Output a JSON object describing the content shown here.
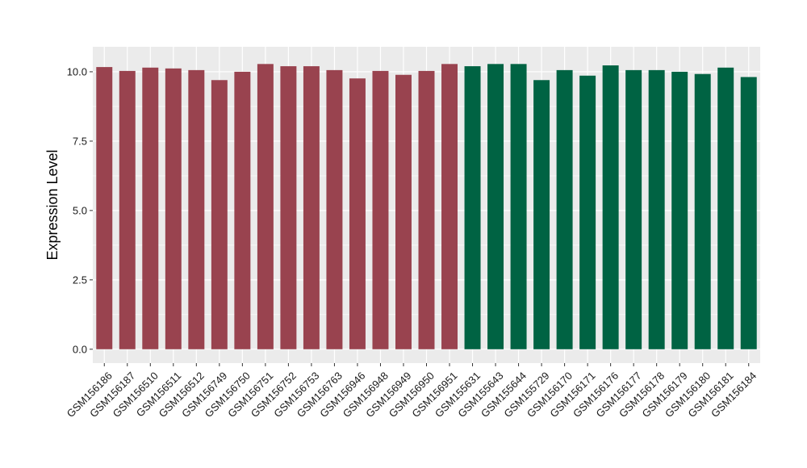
{
  "chart_data": {
    "type": "bar",
    "title": "",
    "xlabel": "",
    "ylabel": "Expression Level",
    "ylim": [
      -0.5,
      10.9
    ],
    "yticks": [
      0.0,
      2.5,
      5.0,
      7.5,
      10.0
    ],
    "ytick_labels": [
      "0.0",
      "2.5",
      "5.0",
      "7.5",
      "10.0"
    ],
    "grid": true,
    "legend": "none",
    "categories": [
      "GSM156186",
      "GSM156187",
      "GSM156510",
      "GSM156511",
      "GSM156512",
      "GSM156749",
      "GSM156750",
      "GSM156751",
      "GSM156752",
      "GSM156753",
      "GSM156763",
      "GSM156946",
      "GSM156948",
      "GSM156949",
      "GSM156950",
      "GSM156951",
      "GSM155631",
      "GSM155643",
      "GSM155644",
      "GSM155729",
      "GSM156170",
      "GSM156171",
      "GSM156176",
      "GSM156177",
      "GSM156178",
      "GSM156179",
      "GSM156180",
      "GSM156181",
      "GSM156184"
    ],
    "values": [
      10.17,
      10.03,
      10.15,
      10.12,
      10.06,
      9.7,
      10.0,
      10.28,
      10.2,
      10.2,
      10.06,
      9.76,
      10.03,
      9.89,
      10.03,
      10.28,
      10.2,
      10.28,
      10.28,
      9.7,
      10.06,
      9.86,
      10.23,
      10.06,
      10.06,
      10.0,
      9.92,
      10.15,
      9.81
    ],
    "groups": [
      "A",
      "A",
      "A",
      "A",
      "A",
      "A",
      "A",
      "A",
      "A",
      "A",
      "A",
      "A",
      "A",
      "A",
      "A",
      "A",
      "B",
      "B",
      "B",
      "B",
      "B",
      "B",
      "B",
      "B",
      "B",
      "B",
      "B",
      "B",
      "B"
    ],
    "group_colors": {
      "A": "#99434f",
      "B": "#006343"
    },
    "panel_background": "#ebebeb",
    "gridline_color": "#ffffff"
  }
}
